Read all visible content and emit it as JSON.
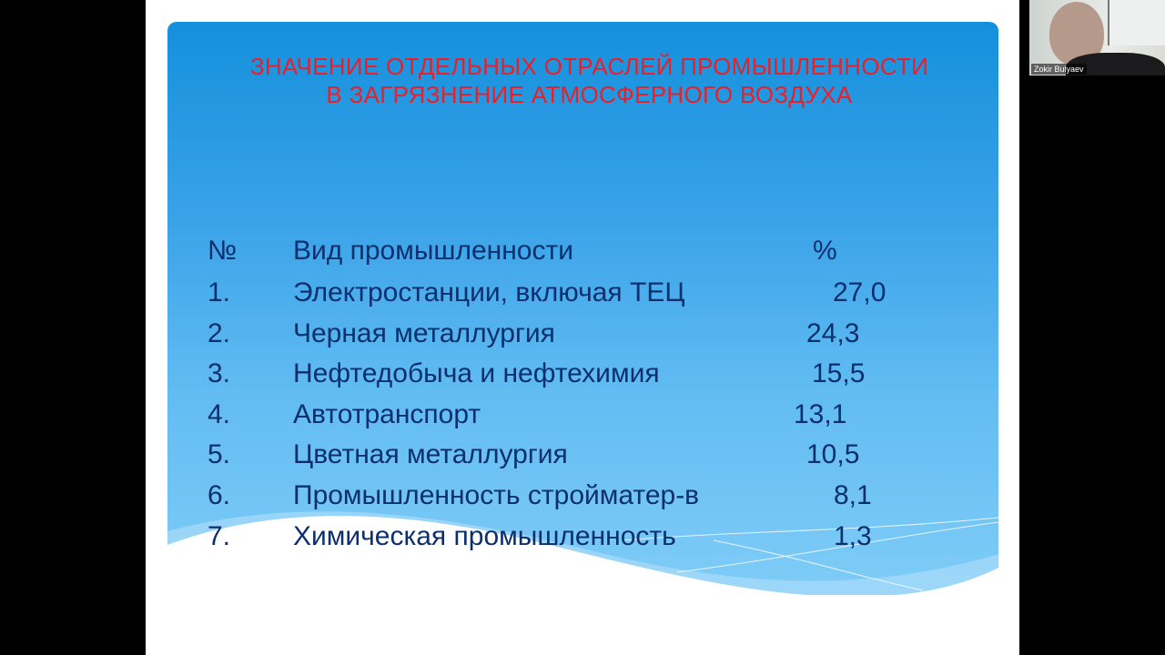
{
  "slide": {
    "title_lines": [
      "ЗНАЧЕНИЕ ОТДЕЛЬНЫХ ОТРАСЛЕЙ ПРОМЫШЛЕННОСТИ",
      "В ЗАГРЯЗНЕНИЕ АТМОСФЕРНОГО ВОЗДУХА"
    ],
    "table": {
      "headers": [
        "№",
        "Вид промышленности",
        "%"
      ],
      "rows": [
        {
          "num": "1.",
          "name": "Электростанции, включая ТЕЦ",
          "value": "27,0"
        },
        {
          "num": "2.",
          "name": "Черная металлургия",
          "value": "24,3"
        },
        {
          "num": "3.",
          "name": "Нефтедобыча и нефтехимия",
          "value": "15,5"
        },
        {
          "num": "4.",
          "name": "Автотранспорт",
          "value": "13,1"
        },
        {
          "num": "5.",
          "name": "Цветная металлургия",
          "value": "10,5"
        },
        {
          "num": "6.",
          "name": "Промышленность строй­матер-в",
          "value": "8,1"
        },
        {
          "num": "7.",
          "name": "Химическая промышленность",
          "value": "1,3"
        }
      ]
    },
    "colors": {
      "title": "#e8202a",
      "text": "#0c2f6e",
      "panel": "#1590dc"
    }
  },
  "participant": {
    "name": "Zokir Bulyaev"
  }
}
